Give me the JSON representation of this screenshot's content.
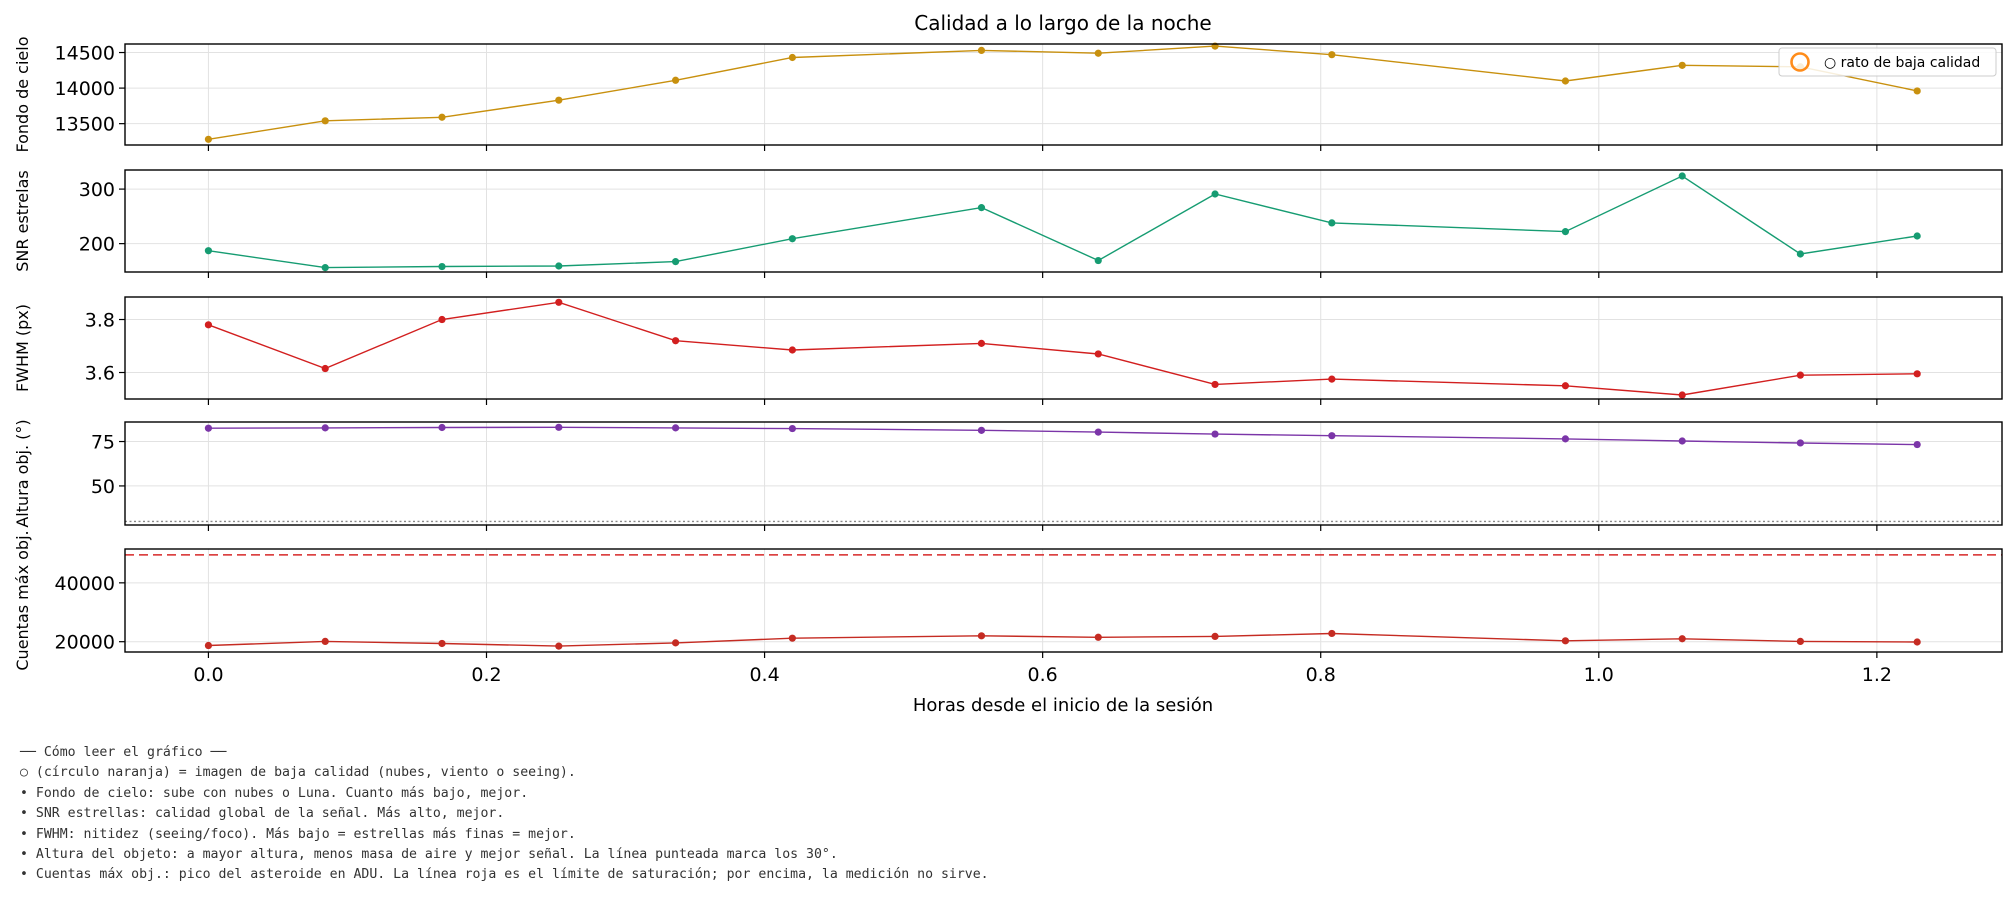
{
  "chart_data": {
    "type": "line",
    "title": "Calidad a lo largo de la noche",
    "xlabel": "Horas desde el inicio de la sesión",
    "xlim": [
      -0.06,
      1.29
    ],
    "xticks": [
      0.0,
      0.2,
      0.4,
      0.6,
      0.8,
      1.0,
      1.2
    ],
    "x": [
      0.0,
      0.084,
      0.168,
      0.252,
      0.336,
      0.42,
      0.556,
      0.64,
      0.724,
      0.808,
      0.976,
      1.06,
      1.145,
      1.229
    ],
    "grid": true,
    "legend": {
      "placement": "top-right",
      "entries": [
        {
          "marker": "hollow-circle",
          "color": "#ff8c1a",
          "label": "○ rato de baja calidad"
        }
      ]
    },
    "panels": [
      {
        "ylabel": "Fondo de cielo",
        "color": "#c8900e",
        "ylim": [
          13200,
          14620
        ],
        "yticks": [
          13500,
          14000,
          14500
        ],
        "values": [
          13280,
          13540,
          13590,
          13830,
          14110,
          14430,
          14530,
          14490,
          14590,
          14470,
          14100,
          14320,
          14300,
          13960
        ]
      },
      {
        "ylabel": "SNR estrelas",
        "color": "#169c72",
        "ylim": [
          148,
          335
        ],
        "yticks": [
          200,
          300
        ],
        "values": [
          187,
          156,
          158,
          159,
          167,
          209,
          266,
          169,
          291,
          238,
          222,
          324,
          181,
          214
        ]
      },
      {
        "ylabel": "FWHM (px)",
        "color": "#d21f1f",
        "ylim": [
          3.5,
          3.885
        ],
        "yticks": [
          3.6,
          3.8
        ],
        "values": [
          3.78,
          3.615,
          3.8,
          3.865,
          3.72,
          3.685,
          3.71,
          3.67,
          3.555,
          3.575,
          3.55,
          3.515,
          3.59,
          3.595
        ]
      },
      {
        "ylabel": "Altura obj. (°)",
        "color": "#7b35a8",
        "ylim": [
          28,
          86
        ],
        "yticks": [
          50,
          75
        ],
        "values": [
          82.5,
          82.7,
          82.9,
          83.0,
          82.7,
          82.3,
          81.3,
          80.3,
          79.2,
          78.3,
          76.5,
          75.3,
          74.2,
          73.3
        ],
        "reference_line": {
          "value": 30,
          "style": "dotted",
          "color": "#888888"
        }
      },
      {
        "ylabel": "Cuentas máx obj.",
        "color": "#c52b22",
        "ylim": [
          16500,
          51500
        ],
        "yticks": [
          20000,
          40000
        ],
        "values": [
          18700,
          20100,
          19400,
          18500,
          19600,
          21200,
          22000,
          21500,
          21800,
          22800,
          20300,
          21000,
          20100,
          19900
        ],
        "reference_line": {
          "value": 49500,
          "style": "dashed",
          "color": "#d62728"
        }
      }
    ]
  },
  "notes": {
    "heading": "── Cómo leer el gráfico ──",
    "lines": [
      "○ (círculo naranja) = imagen de baja calidad (nubes, viento o seeing).",
      "• Fondo de cielo: sube con nubes o Luna. Cuanto más bajo, mejor.",
      "• SNR estrellas: calidad global de la señal. Más alto, mejor.",
      "• FWHM: nitidez (seeing/foco). Más bajo = estrellas más finas = mejor.",
      "• Altura del objeto: a mayor altura, menos masa de aire y mejor señal. La línea punteada marca los 30°.",
      "• Cuentas máx obj.: pico del asteroide en ADU. La línea roja es el límite de saturación; por encima, la medición no sirve."
    ]
  }
}
